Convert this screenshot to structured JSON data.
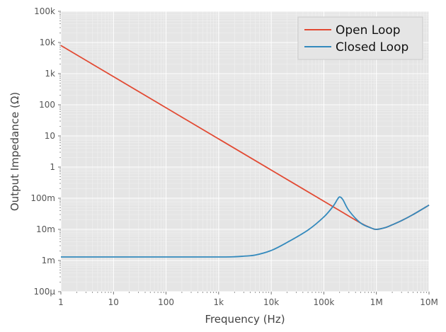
{
  "chart_data": {
    "type": "line",
    "xlabel": "Frequency (Hz)",
    "ylabel": "Output Impedance (Ω)",
    "x_scale": "log",
    "y_scale": "log",
    "xlim": [
      1,
      10000000
    ],
    "ylim": [
      0.0001,
      100000
    ],
    "x_ticks": [
      {
        "value": 1,
        "label": "1"
      },
      {
        "value": 10,
        "label": "10"
      },
      {
        "value": 100,
        "label": "100"
      },
      {
        "value": 1000,
        "label": "1k"
      },
      {
        "value": 10000,
        "label": "10k"
      },
      {
        "value": 100000,
        "label": "100k"
      },
      {
        "value": 1000000,
        "label": "1M"
      },
      {
        "value": 10000000,
        "label": "10M"
      }
    ],
    "y_ticks": [
      {
        "value": 0.0001,
        "label": "100µ"
      },
      {
        "value": 0.001,
        "label": "1m"
      },
      {
        "value": 0.01,
        "label": "10m"
      },
      {
        "value": 0.1,
        "label": "100m"
      },
      {
        "value": 1,
        "label": "1"
      },
      {
        "value": 10,
        "label": "10"
      },
      {
        "value": 100,
        "label": "100"
      },
      {
        "value": 1000,
        "label": "1k"
      },
      {
        "value": 10000,
        "label": "10k"
      },
      {
        "value": 100000,
        "label": "100k"
      }
    ],
    "grid": true,
    "legend_position": "top-right",
    "series": [
      {
        "name": "Open Loop",
        "color": "#e24a33",
        "x": [
          1,
          10,
          100,
          1000,
          10000,
          100000,
          200000,
          500000,
          800000,
          1000000,
          1500000,
          2000000,
          3000000,
          5000000,
          10000000
        ],
        "y": [
          8000,
          800,
          80,
          8,
          0.8,
          0.08,
          0.04,
          0.016,
          0.011,
          0.01,
          0.0115,
          0.014,
          0.019,
          0.03,
          0.06
        ]
      },
      {
        "name": "Closed Loop",
        "color": "#348abd",
        "x": [
          1,
          10,
          100,
          1000,
          2000,
          3000,
          5000,
          10000,
          20000,
          50000,
          100000,
          150000,
          180000,
          200000,
          230000,
          300000,
          500000,
          800000,
          1000000,
          1500000,
          2000000,
          3000000,
          5000000,
          10000000
        ],
        "y": [
          0.0013,
          0.0013,
          0.0013,
          0.0013,
          0.00132,
          0.00138,
          0.0015,
          0.0021,
          0.0038,
          0.0095,
          0.025,
          0.055,
          0.09,
          0.11,
          0.09,
          0.04,
          0.016,
          0.011,
          0.01,
          0.0115,
          0.014,
          0.019,
          0.03,
          0.06
        ]
      }
    ]
  }
}
